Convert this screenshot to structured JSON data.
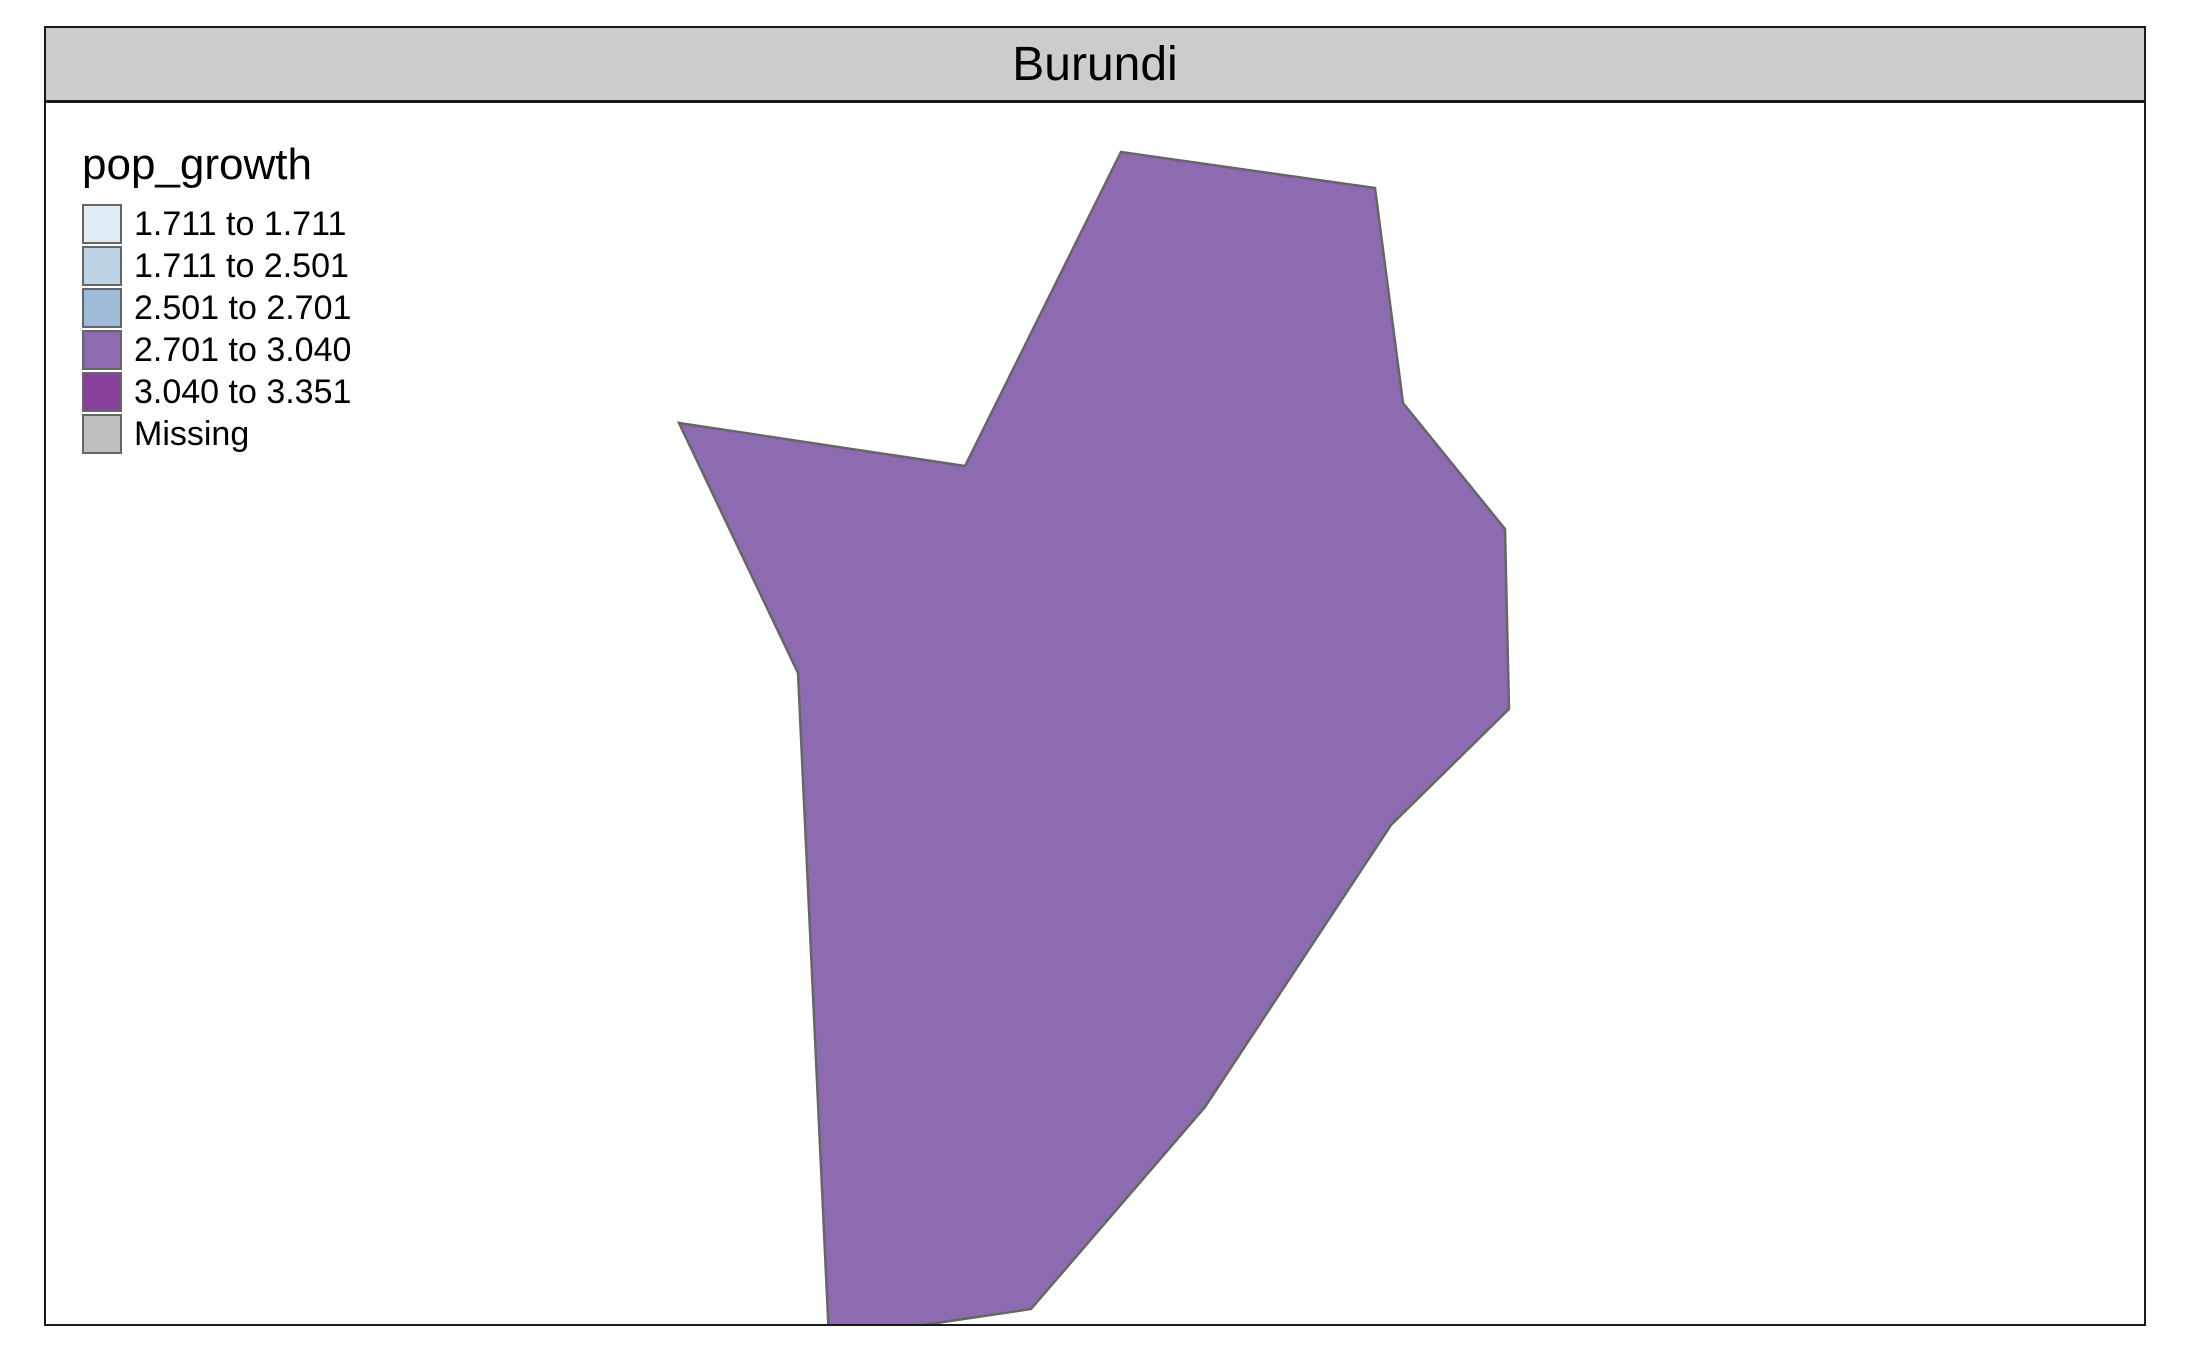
{
  "panel_title": "Burundi",
  "legend": {
    "title": "pop_growth",
    "items": [
      {
        "label": "1.711 to 1.711",
        "color": "#e0ecf4"
      },
      {
        "label": "1.711 to 2.501",
        "color": "#bfd3e6"
      },
      {
        "label": "2.501 to 2.701",
        "color": "#9ebcda"
      },
      {
        "label": "2.701 to 3.040",
        "color": "#8c6bb1"
      },
      {
        "label": "3.040 to 3.351",
        "color": "#88419d"
      },
      {
        "label": "Missing",
        "color": "#bfbfbf"
      }
    ]
  },
  "map": {
    "country": "Burundi",
    "fill": "#8c6bb1",
    "stroke": "#666666"
  }
}
